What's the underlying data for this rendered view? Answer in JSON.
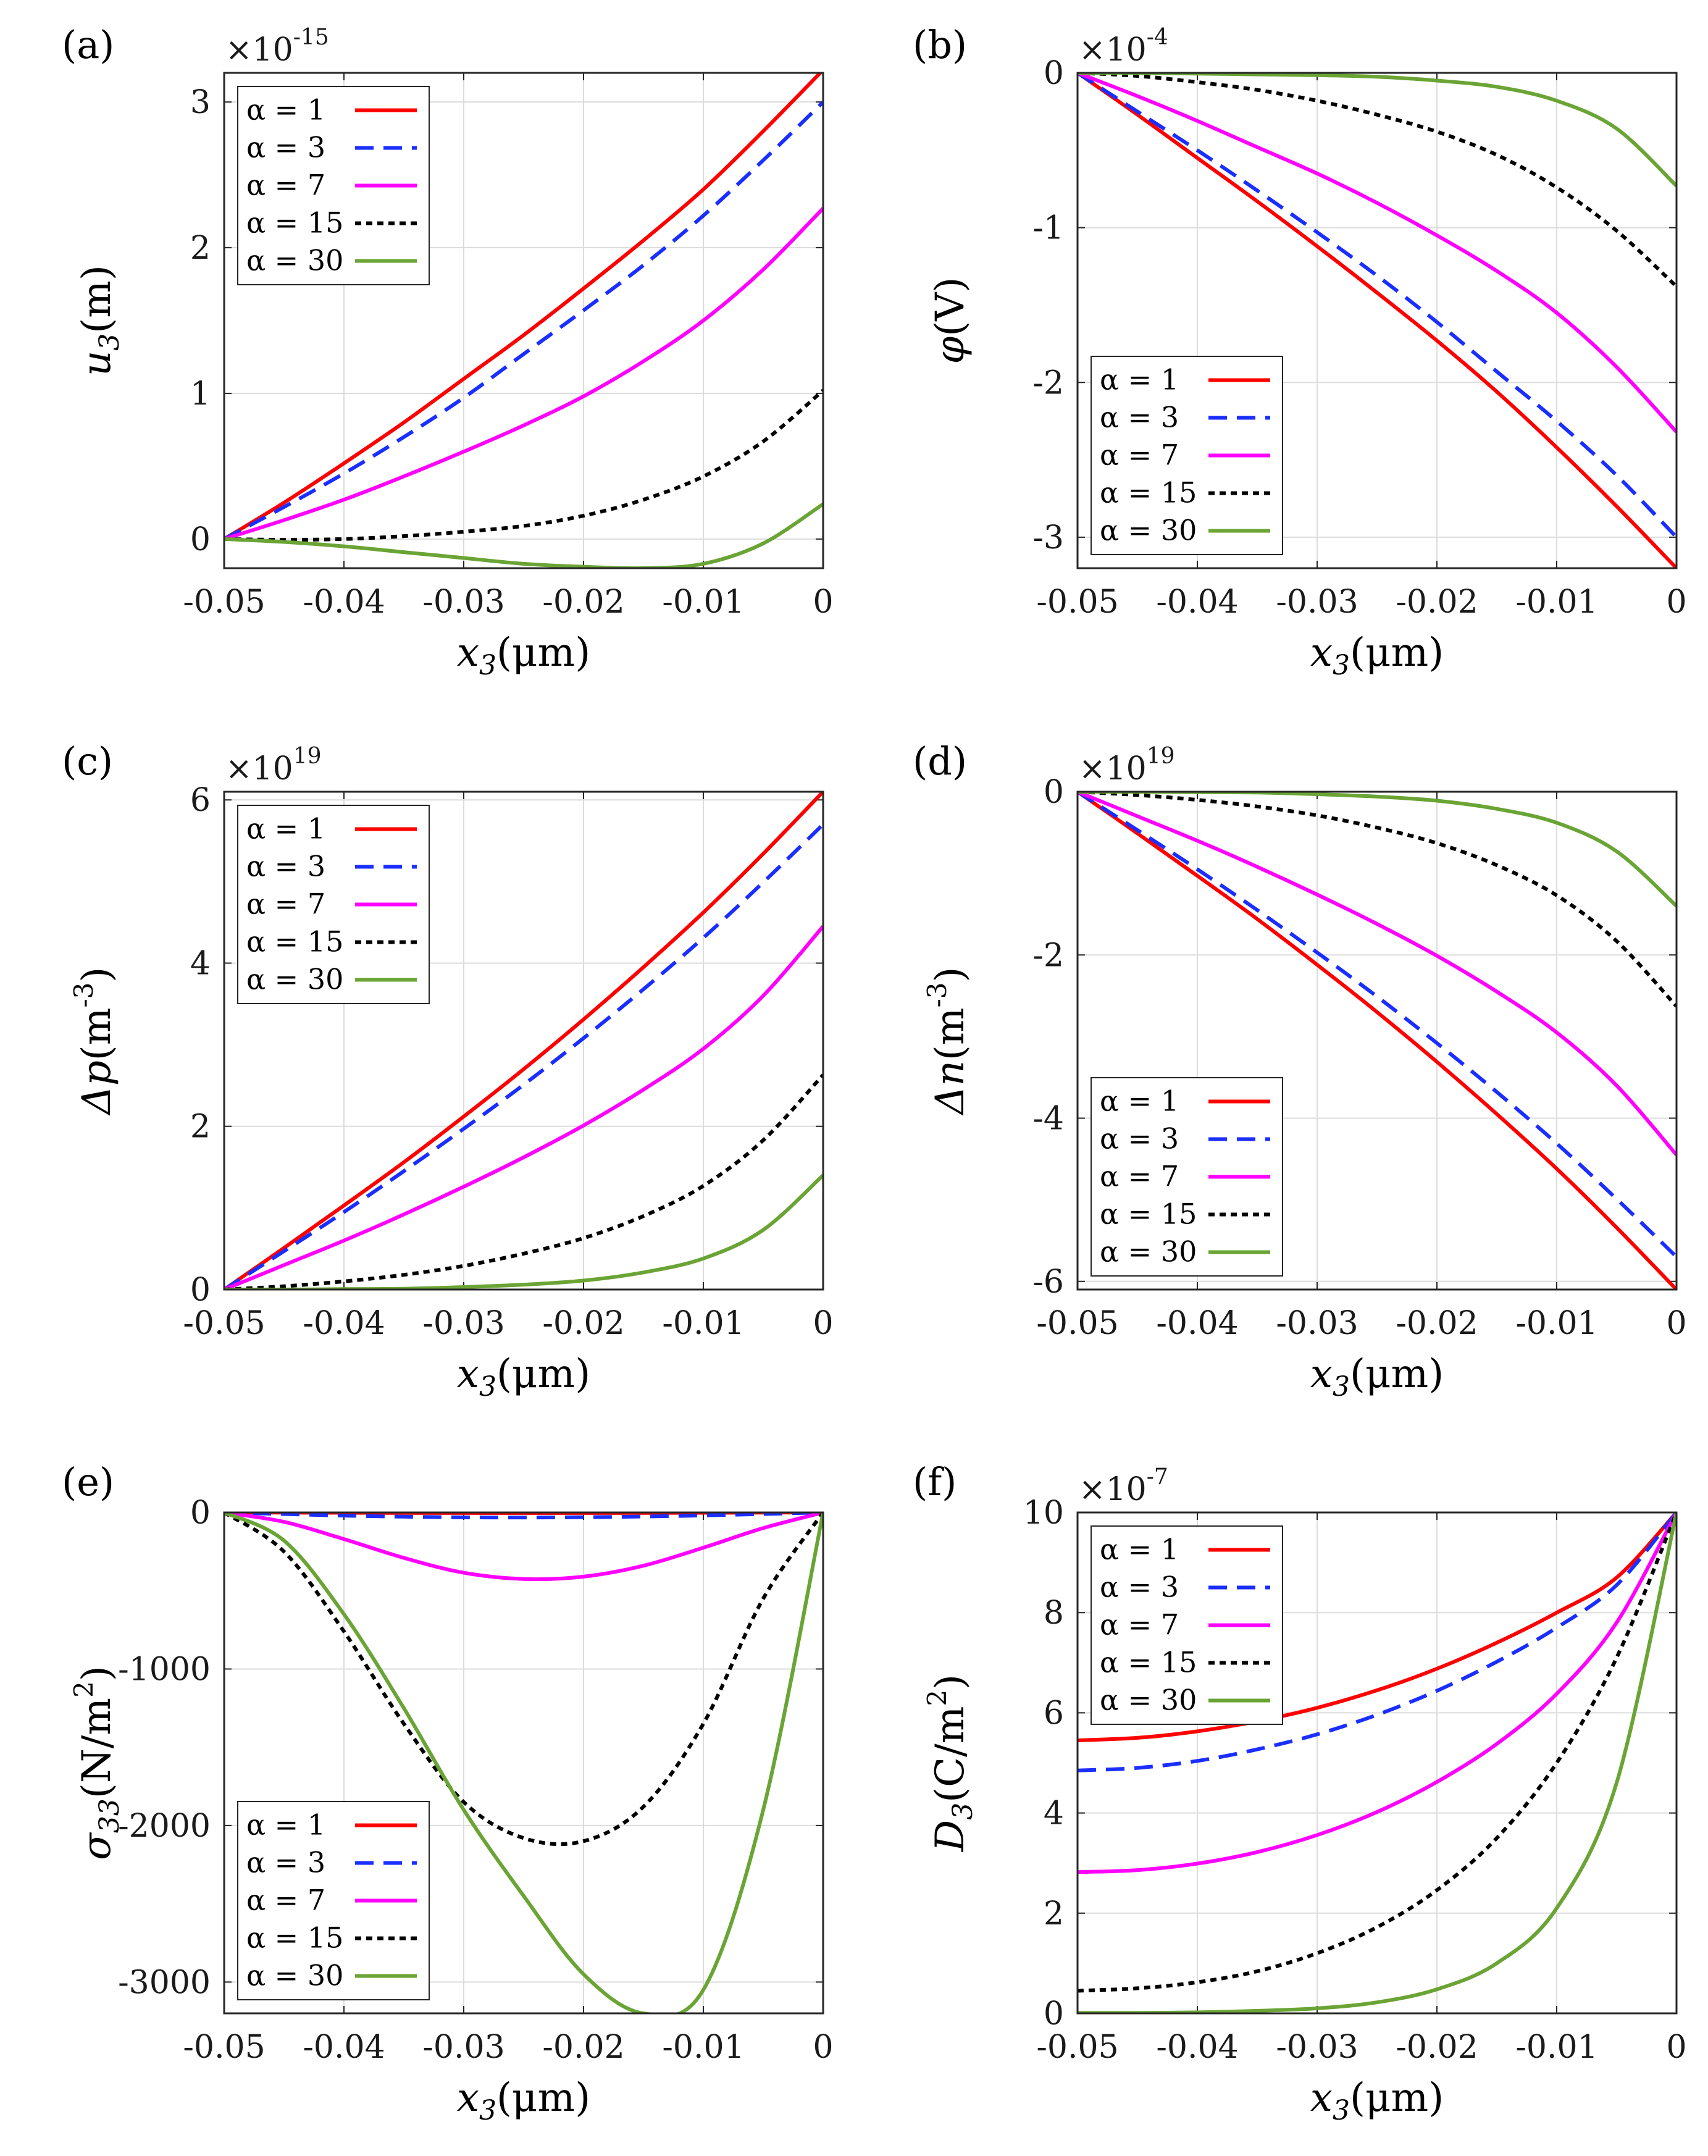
{
  "chart_data": [
    {
      "panel": "(a)",
      "type": "line",
      "ylabel": "u",
      "ylabel_sub": "3",
      "ylabel_unit": "(m)",
      "xlabel": "x",
      "xlabel_sub": "3",
      "xlabel_unit": "(μm)",
      "multiplier": "×10",
      "multiplier_exp": "-15",
      "xlim": [
        -0.05,
        0
      ],
      "ylim": [
        -0.2,
        3.2
      ],
      "xticks": [
        "-0.05",
        "-0.04",
        "-0.03",
        "-0.02",
        "-0.01",
        "0"
      ],
      "yticks": [
        "0",
        "1",
        "2",
        "3"
      ],
      "legend_loc": "top-left",
      "x": [
        -0.05,
        -0.045,
        -0.04,
        -0.035,
        -0.03,
        -0.025,
        -0.02,
        -0.015,
        -0.01,
        -0.005,
        0
      ],
      "series": [
        {
          "name": "α = 1",
          "color": "#ff0000",
          "dash": "solid",
          "values": [
            0,
            0.25,
            0.52,
            0.8,
            1.1,
            1.4,
            1.72,
            2.05,
            2.4,
            2.8,
            3.22
          ]
        },
        {
          "name": "α = 3",
          "color": "#1a2eff",
          "dash": "dashed",
          "values": [
            0,
            0.22,
            0.45,
            0.7,
            0.97,
            1.27,
            1.57,
            1.88,
            2.22,
            2.6,
            3.0
          ]
        },
        {
          "name": "α = 7",
          "color": "#ff00ff",
          "dash": "solid",
          "values": [
            0,
            0.13,
            0.27,
            0.43,
            0.6,
            0.78,
            0.98,
            1.22,
            1.5,
            1.85,
            2.27
          ]
        },
        {
          "name": "α = 15",
          "color": "#000000",
          "dash": "dotted",
          "values": [
            0,
            -0.005,
            0.0,
            0.02,
            0.05,
            0.09,
            0.16,
            0.27,
            0.43,
            0.67,
            1.02
          ]
        },
        {
          "name": "α = 30",
          "color": "#6aa435",
          "dash": "solid",
          "values": [
            0,
            -0.02,
            -0.05,
            -0.09,
            -0.13,
            -0.17,
            -0.19,
            -0.2,
            -0.17,
            -0.03,
            0.24
          ]
        }
      ]
    },
    {
      "panel": "(b)",
      "type": "line",
      "ylabel": "φ",
      "ylabel_sub": "",
      "ylabel_unit": "(V)",
      "xlabel": "x",
      "xlabel_sub": "3",
      "xlabel_unit": "(μm)",
      "multiplier": "×10",
      "multiplier_exp": "-4",
      "xlim": [
        -0.05,
        0
      ],
      "ylim": [
        -3.2,
        0
      ],
      "xticks": [
        "-0.05",
        "-0.04",
        "-0.03",
        "-0.02",
        "-0.01",
        "0"
      ],
      "yticks": [
        "0",
        "-1",
        "-2",
        "-3"
      ],
      "legend_loc": "bottom-left",
      "x": [
        -0.05,
        -0.045,
        -0.04,
        -0.035,
        -0.03,
        -0.025,
        -0.02,
        -0.015,
        -0.01,
        -0.005,
        0
      ],
      "series": [
        {
          "name": "α = 1",
          "color": "#ff0000",
          "dash": "solid",
          "values": [
            0,
            -0.27,
            -0.55,
            -0.83,
            -1.12,
            -1.42,
            -1.73,
            -2.06,
            -2.42,
            -2.8,
            -3.2
          ]
        },
        {
          "name": "α = 3",
          "color": "#1a2eff",
          "dash": "dashed",
          "values": [
            0,
            -0.25,
            -0.5,
            -0.76,
            -1.03,
            -1.31,
            -1.61,
            -1.93,
            -2.25,
            -2.6,
            -3.0
          ]
        },
        {
          "name": "α = 7",
          "color": "#ff00ff",
          "dash": "solid",
          "values": [
            0,
            -0.15,
            -0.31,
            -0.48,
            -0.65,
            -0.84,
            -1.05,
            -1.28,
            -1.55,
            -1.9,
            -2.32
          ]
        },
        {
          "name": "α = 15",
          "color": "#000000",
          "dash": "dotted",
          "values": [
            0,
            -0.02,
            -0.06,
            -0.11,
            -0.18,
            -0.27,
            -0.38,
            -0.53,
            -0.74,
            -1.02,
            -1.38
          ]
        },
        {
          "name": "α = 30",
          "color": "#6aa435",
          "dash": "solid",
          "values": [
            0,
            0,
            -0.005,
            -0.01,
            -0.015,
            -0.025,
            -0.05,
            -0.09,
            -0.18,
            -0.36,
            -0.73
          ]
        }
      ]
    },
    {
      "panel": "(c)",
      "type": "line",
      "ylabel": "Δp",
      "ylabel_sub": "",
      "ylabel_unit": "(m",
      "ylabel_sup": "-3",
      "xlabel": "x",
      "xlabel_sub": "3",
      "xlabel_unit": "(μm)",
      "multiplier": "×10",
      "multiplier_exp": "19",
      "xlim": [
        -0.05,
        0
      ],
      "ylim": [
        0,
        6.1
      ],
      "xticks": [
        "-0.05",
        "-0.04",
        "-0.03",
        "-0.02",
        "-0.01",
        "0"
      ],
      "yticks": [
        "0",
        "2",
        "4",
        "6"
      ],
      "legend_loc": "top-left",
      "x": [
        -0.05,
        -0.045,
        -0.04,
        -0.035,
        -0.03,
        -0.025,
        -0.02,
        -0.015,
        -0.01,
        -0.005,
        0
      ],
      "series": [
        {
          "name": "α = 1",
          "color": "#ff0000",
          "dash": "solid",
          "values": [
            0,
            0.51,
            1.03,
            1.56,
            2.12,
            2.7,
            3.31,
            3.95,
            4.62,
            5.34,
            6.1
          ]
        },
        {
          "name": "α = 3",
          "color": "#1a2eff",
          "dash": "dashed",
          "values": [
            0,
            0.47,
            0.95,
            1.45,
            1.97,
            2.51,
            3.08,
            3.68,
            4.31,
            4.99,
            5.7
          ]
        },
        {
          "name": "α = 7",
          "color": "#ff00ff",
          "dash": "solid",
          "values": [
            0,
            0.3,
            0.6,
            0.92,
            1.26,
            1.62,
            2.01,
            2.45,
            2.95,
            3.6,
            4.45
          ]
        },
        {
          "name": "α = 15",
          "color": "#000000",
          "dash": "dotted",
          "values": [
            0,
            0.04,
            0.1,
            0.18,
            0.29,
            0.44,
            0.63,
            0.9,
            1.27,
            1.83,
            2.63
          ]
        },
        {
          "name": "α = 30",
          "color": "#6aa435",
          "dash": "solid",
          "values": [
            0,
            0,
            0.005,
            0.01,
            0.03,
            0.06,
            0.11,
            0.21,
            0.38,
            0.73,
            1.4
          ]
        }
      ]
    },
    {
      "panel": "(d)",
      "type": "line",
      "ylabel": "Δn",
      "ylabel_sub": "",
      "ylabel_unit": "(m",
      "ylabel_sup": "-3",
      "xlabel": "x",
      "xlabel_sub": "3",
      "xlabel_unit": "(μm)",
      "multiplier": "×10",
      "multiplier_exp": "19",
      "xlim": [
        -0.05,
        0
      ],
      "ylim": [
        -6.1,
        0
      ],
      "xticks": [
        "-0.05",
        "-0.04",
        "-0.03",
        "-0.02",
        "-0.01",
        "0"
      ],
      "yticks": [
        "0",
        "-2",
        "-4",
        "-6"
      ],
      "legend_loc": "bottom-left",
      "x": [
        -0.05,
        -0.045,
        -0.04,
        -0.035,
        -0.03,
        -0.025,
        -0.02,
        -0.015,
        -0.01,
        -0.005,
        0
      ],
      "series": [
        {
          "name": "α = 1",
          "color": "#ff0000",
          "dash": "solid",
          "values": [
            0,
            -0.51,
            -1.03,
            -1.56,
            -2.12,
            -2.7,
            -3.31,
            -3.95,
            -4.62,
            -5.34,
            -6.1
          ]
        },
        {
          "name": "α = 3",
          "color": "#1a2eff",
          "dash": "dashed",
          "values": [
            0,
            -0.47,
            -0.95,
            -1.45,
            -1.97,
            -2.51,
            -3.08,
            -3.68,
            -4.31,
            -4.99,
            -5.7
          ]
        },
        {
          "name": "α = 7",
          "color": "#ff00ff",
          "dash": "solid",
          "values": [
            0,
            -0.3,
            -0.6,
            -0.92,
            -1.26,
            -1.62,
            -2.01,
            -2.45,
            -2.95,
            -3.6,
            -4.45
          ]
        },
        {
          "name": "α = 15",
          "color": "#000000",
          "dash": "dotted",
          "values": [
            0,
            -0.04,
            -0.1,
            -0.18,
            -0.29,
            -0.44,
            -0.63,
            -0.9,
            -1.27,
            -1.83,
            -2.63
          ]
        },
        {
          "name": "α = 30",
          "color": "#6aa435",
          "dash": "solid",
          "values": [
            0,
            0,
            -0.005,
            -0.01,
            -0.03,
            -0.06,
            -0.11,
            -0.21,
            -0.38,
            -0.73,
            -1.4
          ]
        }
      ]
    },
    {
      "panel": "(e)",
      "type": "line",
      "ylabel": "σ",
      "ylabel_sub": "33",
      "ylabel_unit": "(N/m",
      "ylabel_sup": "2",
      "xlabel": "x",
      "xlabel_sub": "3",
      "xlabel_unit": "(μm)",
      "multiplier": "",
      "multiplier_exp": "",
      "xlim": [
        -0.05,
        0
      ],
      "ylim": [
        -3200,
        0
      ],
      "xticks": [
        "-0.05",
        "-0.04",
        "-0.03",
        "-0.02",
        "-0.01",
        "0"
      ],
      "yticks": [
        "0",
        "-1000",
        "-2000",
        "-3000"
      ],
      "legend_loc": "bottom-left",
      "x": [
        -0.05,
        -0.045,
        -0.04,
        -0.035,
        -0.03,
        -0.025,
        -0.02,
        -0.015,
        -0.01,
        -0.005,
        0
      ],
      "series": [
        {
          "name": "α = 1",
          "color": "#ff0000",
          "dash": "solid",
          "values": [
            0,
            -1,
            -2,
            -3,
            -3.5,
            -4,
            -3.5,
            -3,
            -2,
            -1,
            0
          ]
        },
        {
          "name": "α = 3",
          "color": "#1a2eff",
          "dash": "dashed",
          "values": [
            0,
            -10,
            -20,
            -27,
            -31,
            -32,
            -30,
            -26,
            -19,
            -10,
            0
          ]
        },
        {
          "name": "α = 7",
          "color": "#ff00ff",
          "dash": "solid",
          "values": [
            0,
            -60,
            -170,
            -290,
            -385,
            -425,
            -410,
            -340,
            -225,
            -100,
            0
          ]
        },
        {
          "name": "α = 15",
          "color": "#000000",
          "dash": "dotted",
          "values": [
            0,
            -250,
            -760,
            -1350,
            -1850,
            -2080,
            -2100,
            -1880,
            -1350,
            -550,
            0
          ]
        },
        {
          "name": "α = 30",
          "color": "#6aa435",
          "dash": "solid",
          "values": [
            0,
            -180,
            -650,
            -1250,
            -1900,
            -2450,
            -2950,
            -3200,
            -3050,
            -1900,
            0
          ]
        }
      ]
    },
    {
      "panel": "(f)",
      "type": "line",
      "ylabel": "D",
      "ylabel_sub": "3",
      "ylabel_unit": "(C/m",
      "ylabel_sup": "2",
      "xlabel": "x",
      "xlabel_sub": "3",
      "xlabel_unit": "(μm)",
      "multiplier": "×10",
      "multiplier_exp": "-7",
      "xlim": [
        -0.05,
        0
      ],
      "ylim": [
        0,
        10
      ],
      "xticks": [
        "-0.05",
        "-0.04",
        "-0.03",
        "-0.02",
        "-0.01",
        "0"
      ],
      "yticks": [
        "0",
        "2",
        "4",
        "6",
        "8",
        "10"
      ],
      "legend_loc": "top-left",
      "x": [
        -0.05,
        -0.045,
        -0.04,
        -0.035,
        -0.03,
        -0.025,
        -0.02,
        -0.015,
        -0.01,
        -0.005,
        0
      ],
      "series": [
        {
          "name": "α = 1",
          "color": "#ff0000",
          "dash": "solid",
          "values": [
            5.45,
            5.5,
            5.63,
            5.83,
            6.1,
            6.45,
            6.88,
            7.4,
            8.0,
            8.7,
            10.0
          ]
        },
        {
          "name": "α = 3",
          "color": "#1a2eff",
          "dash": "dashed",
          "values": [
            4.85,
            4.9,
            5.04,
            5.27,
            5.57,
            5.96,
            6.44,
            7.02,
            7.7,
            8.55,
            10.0
          ]
        },
        {
          "name": "α = 7",
          "color": "#ff00ff",
          "dash": "solid",
          "values": [
            2.82,
            2.86,
            2.99,
            3.22,
            3.56,
            4.02,
            4.62,
            5.38,
            6.38,
            7.8,
            10.0
          ]
        },
        {
          "name": "α = 15",
          "color": "#000000",
          "dash": "dotted",
          "values": [
            0.45,
            0.5,
            0.62,
            0.84,
            1.2,
            1.72,
            2.46,
            3.5,
            5.0,
            7.1,
            10.0
          ]
        },
        {
          "name": "α = 30",
          "color": "#6aa435",
          "dash": "solid",
          "values": [
            0.01,
            0.01,
            0.02,
            0.05,
            0.1,
            0.22,
            0.48,
            1.0,
            2.1,
            4.6,
            10.0
          ]
        }
      ]
    }
  ]
}
